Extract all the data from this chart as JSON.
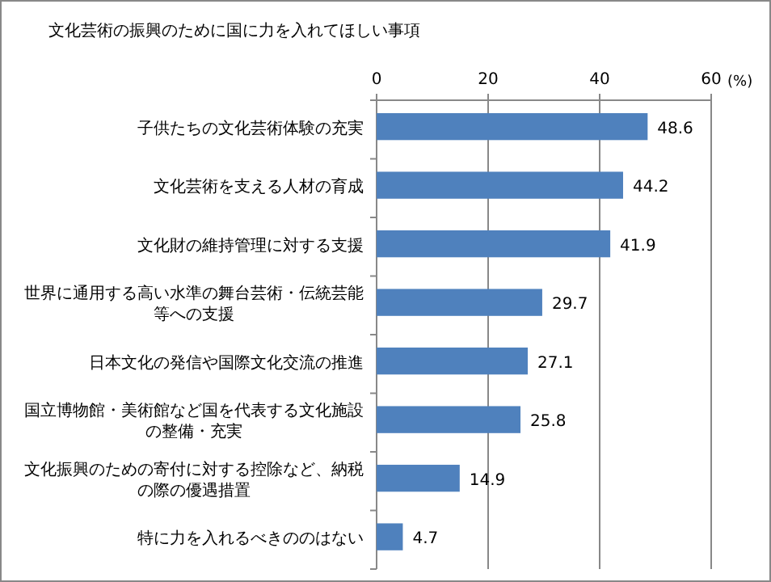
{
  "chart_data": {
    "type": "bar",
    "orientation": "horizontal",
    "title": "文化芸術の振興のために国に力を入れてほしい事項",
    "xlabel": "(%)",
    "categories": [
      "子供たちの文化芸術体験の充実",
      "文化芸術を支える人材の育成",
      "文化財の維持管理に対する支援",
      "世界に通用する高い水準の舞台芸術・伝統芸能等への支援",
      "日本文化の発信や国際文化交流の推進",
      "国立博物館・美術館など国を代表する文化施設の整備・充実",
      "文化振興のための寄付に対する控除など、納税の際の優遇措置",
      "特に力を入れるべきののはない"
    ],
    "values": [
      48.6,
      44.2,
      41.9,
      29.7,
      27.1,
      25.8,
      14.9,
      4.7
    ],
    "color": "#4f81bd",
    "xlim": [
      0,
      60
    ],
    "xticks": [
      0,
      20,
      40,
      60
    ],
    "grid": "x",
    "data_labels": true
  }
}
